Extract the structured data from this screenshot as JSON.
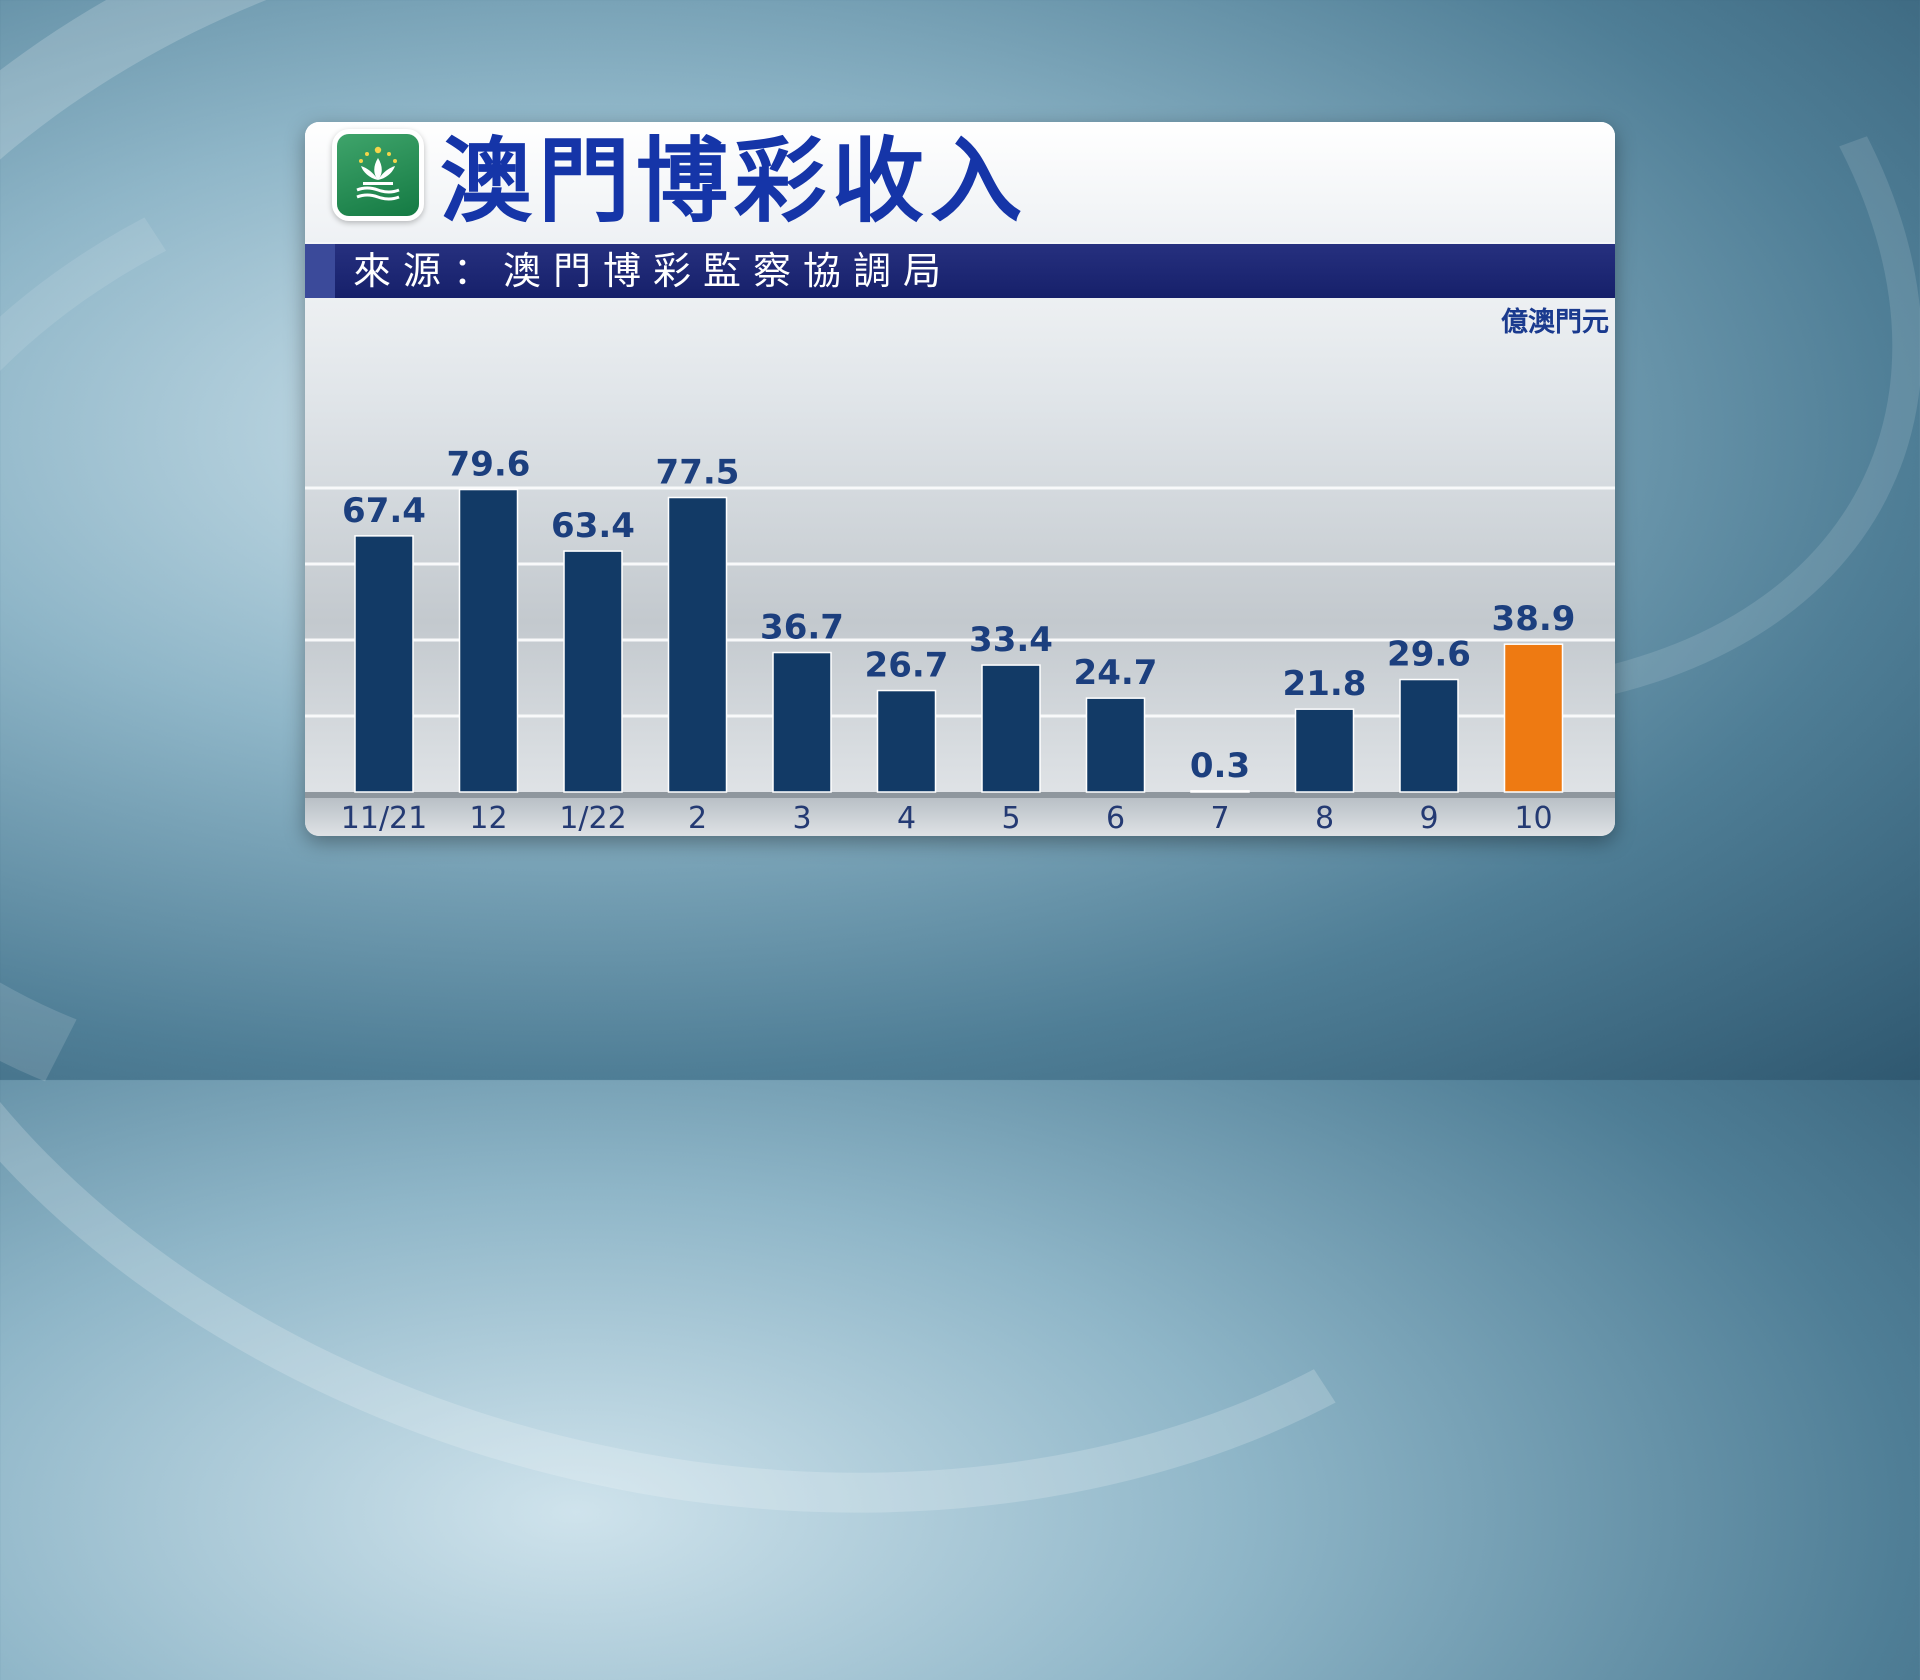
{
  "title": "澳門博彩收入",
  "source": "來源：澳門博彩監察協調局",
  "unit": "億澳門元",
  "chart_data": {
    "type": "bar",
    "categories": [
      "11/21",
      "12",
      "1/22",
      "2",
      "3",
      "4",
      "5",
      "6",
      "7",
      "8",
      "9",
      "10"
    ],
    "values": [
      67.4,
      79.6,
      63.4,
      77.5,
      36.7,
      26.7,
      33.4,
      24.7,
      0.3,
      21.8,
      29.6,
      38.9
    ],
    "ylabel": "億澳門元",
    "ylim": [
      0,
      100
    ],
    "grid": true,
    "colors": {
      "bar": "#123a66",
      "highlight": "#ee7a12",
      "label": "#1c3f7e"
    },
    "highlight_index": 11
  }
}
